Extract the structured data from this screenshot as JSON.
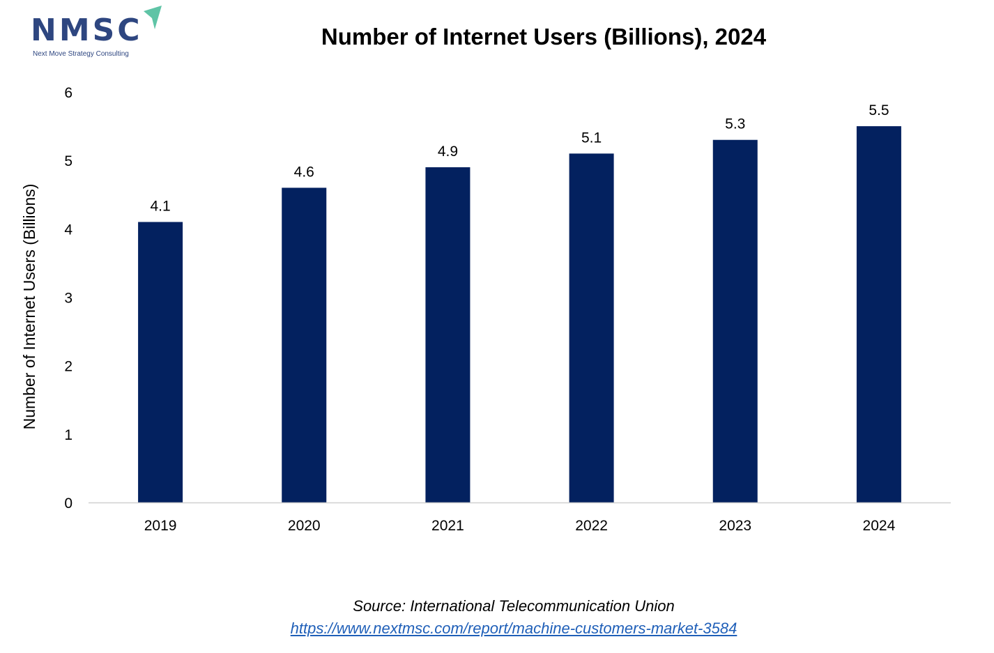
{
  "brand": {
    "logo_text": "NMSC",
    "logo_subtitle": "Next Move Strategy Consulting",
    "logo_color": "#2e4680",
    "arrow_color": "#5fc4a6"
  },
  "chart_data": {
    "type": "bar",
    "title": "Number of Internet Users (Billions), 2024",
    "xlabel": "",
    "ylabel": "Number of Internet Users (Billions)",
    "categories": [
      "2019",
      "2020",
      "2021",
      "2022",
      "2023",
      "2024"
    ],
    "values": [
      4.1,
      4.6,
      4.9,
      5.1,
      5.3,
      5.5
    ],
    "data_labels": [
      "4.1",
      "4.6",
      "4.9",
      "5.1",
      "5.3",
      "5.5"
    ],
    "ylim": [
      0,
      6
    ],
    "yticks": [
      "0",
      "1",
      "2",
      "3",
      "4",
      "5",
      "6"
    ],
    "grid": false,
    "bar_color": "#03215f"
  },
  "footer": {
    "source": "Source: International Telecommunication Union",
    "url": "https://www.nextmsc.com/report/machine-customers-market-3584"
  }
}
